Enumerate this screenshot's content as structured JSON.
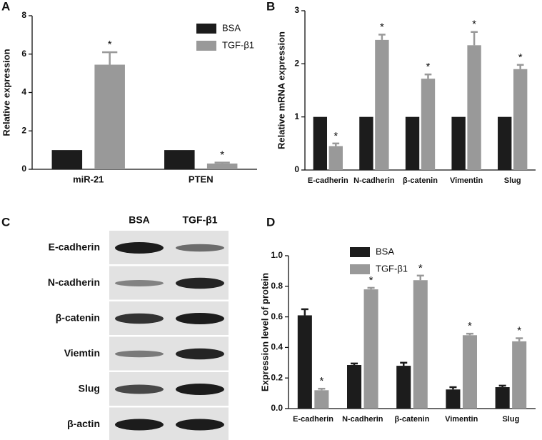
{
  "chart_data": [
    {
      "type": "bar",
      "panel_label": "A",
      "y_label": "Relative expression",
      "categories": [
        "miR-21",
        "PTEN"
      ],
      "series": [
        {
          "name": "BSA",
          "color": "#1c1c1c",
          "values": [
            1,
            1
          ]
        },
        {
          "name": "TGF-β1",
          "color": "#999999",
          "values": [
            5.45,
            0.3
          ],
          "errors": [
            0.65,
            0.05
          ],
          "significance": [
            "*",
            "*"
          ]
        }
      ],
      "ylim": [
        0,
        8
      ],
      "yticks": [
        0,
        2,
        4,
        6,
        8
      ],
      "legend": "top-right"
    },
    {
      "type": "bar",
      "panel_label": "B",
      "y_label": "Relative mRNA expression",
      "categories": [
        "E-cadherin",
        "N-cadherin",
        "β-catenin",
        "Vimentin",
        "Slug"
      ],
      "series": [
        {
          "color": "#1c1c1c",
          "values": [
            1,
            1,
            1,
            1,
            1
          ]
        },
        {
          "color": "#999999",
          "values": [
            0.45,
            2.45,
            1.72,
            2.35,
            1.9
          ],
          "errors": [
            0.05,
            0.1,
            0.08,
            0.25,
            0.08
          ],
          "significance": [
            "*",
            "*",
            "*",
            "*",
            "*"
          ]
        }
      ],
      "ylim": [
        0,
        3
      ],
      "yticks": [
        0,
        1,
        2,
        3
      ]
    },
    {
      "type": "bar",
      "panel_label": "D",
      "y_label": "Expression level of protein",
      "categories": [
        "E-cadherin",
        "N-cadherin",
        "β-catenin",
        "Vimentin",
        "Slug"
      ],
      "series": [
        {
          "name": "BSA",
          "color": "#1c1c1c",
          "values": [
            0.61,
            0.285,
            0.28,
            0.125,
            0.14
          ],
          "errors": [
            0.04,
            0.01,
            0.02,
            0.015,
            0.01
          ]
        },
        {
          "name": "TGF-β1",
          "color": "#999999",
          "values": [
            0.12,
            0.78,
            0.84,
            0.48,
            0.44
          ],
          "errors": [
            0.01,
            0.01,
            0.03,
            0.01,
            0.02
          ],
          "significance": [
            "*",
            "*",
            "*",
            "*",
            "*"
          ]
        }
      ],
      "ylim": [
        0,
        1
      ],
      "yticks": [
        {
          "value": 0,
          "label": "0.0"
        },
        0.2,
        0.4,
        0.6,
        0.8,
        {
          "value": 1,
          "label": "1.0"
        }
      ],
      "legend": "top-right"
    }
  ],
  "blot": {
    "panel_label": "C",
    "columns": [
      "BSA",
      "TGF-β1"
    ],
    "rows": [
      "E-cadherin",
      "N-cadherin",
      "β-catenin",
      "Viemtin",
      "Slug",
      "β-actin"
    ]
  }
}
